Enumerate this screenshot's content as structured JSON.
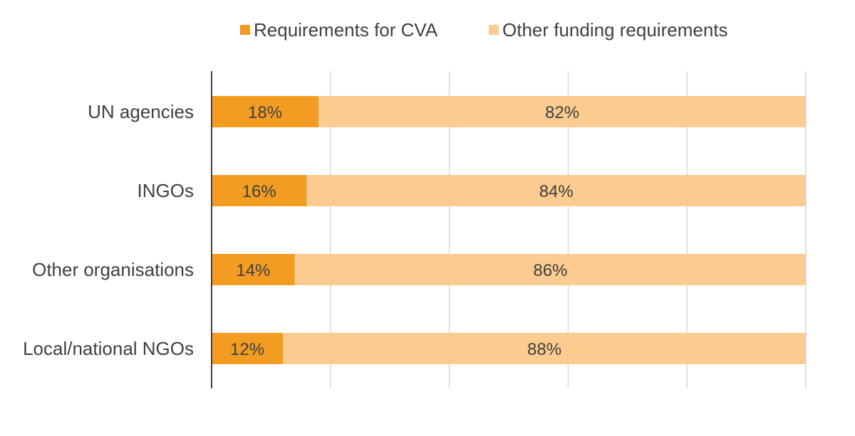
{
  "chart_data": {
    "type": "bar",
    "orientation": "horizontal",
    "stacked": "percent",
    "categories": [
      "UN agencies",
      "INGOs",
      "Other organisations",
      "Local/national NGOs"
    ],
    "series": [
      {
        "name": "Requirements for CVA",
        "values": [
          18,
          16,
          14,
          12
        ],
        "labels": [
          "18%",
          "16%",
          "14%",
          "12%"
        ],
        "color": "#F39C22"
      },
      {
        "name": "Other funding requirements",
        "values": [
          82,
          84,
          86,
          88
        ],
        "labels": [
          "82%",
          "84%",
          "86%",
          "88%"
        ],
        "color": "#FBCB90"
      }
    ],
    "xlim": [
      0,
      100
    ],
    "grid": true,
    "legend_position": "top"
  }
}
